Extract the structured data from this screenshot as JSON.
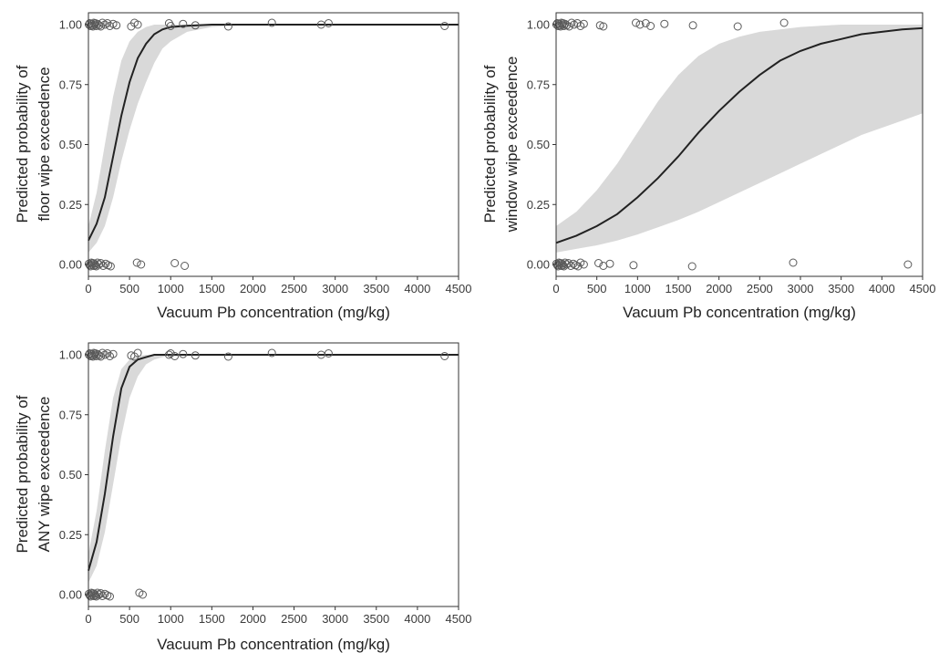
{
  "chart_data": [
    {
      "type": "line",
      "panel": "floor",
      "xlabel": "Vacuum Pb concentration (mg/kg)",
      "ylabel_lines": [
        "Predicted probability of",
        "floor wipe exceedence"
      ],
      "xlim": [
        0,
        4500
      ],
      "ylim": [
        0,
        1
      ],
      "xticks": [
        0,
        500,
        1000,
        1500,
        2000,
        2500,
        3000,
        3500,
        4000,
        4500
      ],
      "yticks": [
        0,
        0.25,
        0.5,
        0.75,
        1.0
      ],
      "ytick_labels": [
        "0.00",
        "0.25",
        "0.50",
        "0.75",
        "1.00"
      ],
      "grid": false,
      "series": [
        {
          "x": [
            0,
            100,
            200,
            300,
            400,
            500,
            600,
            700,
            800,
            900,
            1000,
            1200,
            1500,
            2000,
            4500
          ],
          "y": [
            0.1,
            0.17,
            0.28,
            0.45,
            0.62,
            0.76,
            0.86,
            0.92,
            0.96,
            0.98,
            0.99,
            0.995,
            1.0,
            1.0,
            1.0
          ],
          "lower": [
            0.05,
            0.09,
            0.16,
            0.28,
            0.43,
            0.56,
            0.67,
            0.76,
            0.84,
            0.9,
            0.93,
            0.97,
            0.99,
            1.0,
            1.0
          ],
          "upper": [
            0.16,
            0.3,
            0.5,
            0.7,
            0.85,
            0.93,
            0.97,
            0.99,
            1.0,
            1.0,
            1.0,
            1.0,
            1.0,
            1.0,
            1.0
          ]
        }
      ],
      "points": {
        "y1_x": [
          5,
          15,
          25,
          35,
          45,
          55,
          65,
          75,
          85,
          95,
          110,
          130,
          150,
          170,
          200,
          230,
          260,
          300,
          340,
          520,
          560,
          600,
          980,
          1000,
          1150,
          1300,
          1700,
          2230,
          2830,
          2920,
          4330
        ],
        "y0_x": [
          5,
          15,
          25,
          35,
          45,
          55,
          65,
          75,
          85,
          95,
          110,
          130,
          150,
          180,
          210,
          240,
          270,
          590,
          640,
          1050,
          1170
        ]
      }
    },
    {
      "type": "line",
      "panel": "window",
      "xlabel": "Vacuum Pb concentration (mg/kg)",
      "ylabel_lines": [
        "Predicted probability of",
        "window wipe exceedence"
      ],
      "xlim": [
        0,
        4500
      ],
      "ylim": [
        0,
        1
      ],
      "xticks": [
        0,
        500,
        1000,
        1500,
        2000,
        2500,
        3000,
        3500,
        4000,
        4500
      ],
      "yticks": [
        0,
        0.25,
        0.5,
        0.75,
        1.0
      ],
      "ytick_labels": [
        "0.00",
        "0.25",
        "0.50",
        "0.75",
        "1.00"
      ],
      "grid": false,
      "series": [
        {
          "x": [
            0,
            250,
            500,
            750,
            1000,
            1250,
            1500,
            1750,
            2000,
            2250,
            2500,
            2750,
            3000,
            3250,
            3500,
            3750,
            4000,
            4250,
            4500
          ],
          "y": [
            0.09,
            0.12,
            0.16,
            0.21,
            0.28,
            0.36,
            0.45,
            0.55,
            0.64,
            0.72,
            0.79,
            0.85,
            0.89,
            0.92,
            0.94,
            0.96,
            0.97,
            0.98,
            0.985
          ],
          "lower": [
            0.05,
            0.065,
            0.08,
            0.1,
            0.125,
            0.155,
            0.185,
            0.22,
            0.26,
            0.3,
            0.34,
            0.38,
            0.42,
            0.46,
            0.5,
            0.54,
            0.57,
            0.6,
            0.63
          ],
          "upper": [
            0.16,
            0.22,
            0.31,
            0.42,
            0.55,
            0.68,
            0.79,
            0.87,
            0.92,
            0.95,
            0.97,
            0.98,
            0.99,
            0.995,
            1.0,
            1.0,
            1.0,
            1.0,
            1.0
          ]
        }
      ],
      "points": {
        "y1_x": [
          5,
          15,
          25,
          35,
          45,
          55,
          65,
          75,
          85,
          95,
          110,
          130,
          160,
          190,
          220,
          260,
          300,
          340,
          540,
          580,
          980,
          1030,
          1100,
          1160,
          1330,
          1680,
          2230,
          2800
        ],
        "y0_x": [
          5,
          15,
          25,
          35,
          45,
          55,
          65,
          75,
          85,
          95,
          110,
          130,
          150,
          180,
          210,
          240,
          270,
          300,
          340,
          520,
          580,
          660,
          950,
          1670,
          2910,
          4320
        ]
      }
    },
    {
      "type": "line",
      "panel": "any",
      "xlabel": "Vacuum Pb concentration (mg/kg)",
      "ylabel_lines": [
        "Predicted probability of",
        "ANY wipe exceedence"
      ],
      "xlim": [
        0,
        4500
      ],
      "ylim": [
        0,
        1
      ],
      "xticks": [
        0,
        500,
        1000,
        1500,
        2000,
        2500,
        3000,
        3500,
        4000,
        4500
      ],
      "yticks": [
        0,
        0.25,
        0.5,
        0.75,
        1.0
      ],
      "ytick_labels": [
        "0.00",
        "0.25",
        "0.50",
        "0.75",
        "1.00"
      ],
      "grid": false,
      "series": [
        {
          "x": [
            0,
            100,
            200,
            300,
            400,
            500,
            600,
            700,
            800,
            900,
            1000,
            1200,
            4500
          ],
          "y": [
            0.1,
            0.22,
            0.42,
            0.66,
            0.86,
            0.95,
            0.98,
            0.99,
            1.0,
            1.0,
            1.0,
            1.0,
            1.0
          ],
          "lower": [
            0.05,
            0.12,
            0.26,
            0.46,
            0.66,
            0.82,
            0.91,
            0.96,
            0.98,
            0.99,
            1.0,
            1.0,
            1.0
          ],
          "upper": [
            0.17,
            0.35,
            0.6,
            0.82,
            0.94,
            0.98,
            0.995,
            1.0,
            1.0,
            1.0,
            1.0,
            1.0,
            1.0
          ]
        }
      ],
      "points": {
        "y1_x": [
          5,
          15,
          25,
          35,
          45,
          55,
          65,
          75,
          85,
          95,
          110,
          130,
          150,
          170,
          200,
          230,
          260,
          300,
          520,
          560,
          600,
          980,
          1000,
          1050,
          1150,
          1300,
          1700,
          2230,
          2830,
          2920,
          4330
        ],
        "y0_x": [
          5,
          15,
          25,
          35,
          45,
          55,
          65,
          75,
          85,
          95,
          110,
          130,
          150,
          170,
          200,
          230,
          260,
          620,
          660
        ]
      }
    }
  ]
}
